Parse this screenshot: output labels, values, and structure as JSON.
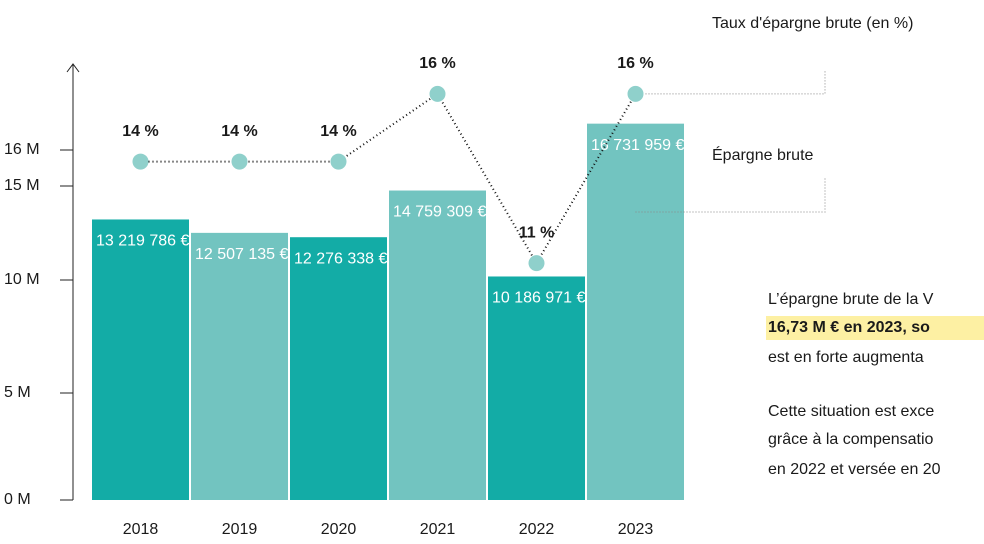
{
  "chart_data": {
    "type": "bar",
    "categories": [
      "2018",
      "2019",
      "2020",
      "2021",
      "2022",
      "2023"
    ],
    "series": [
      {
        "name": "Épargne brute",
        "colors": [
          "#13aca6",
          "#72c4c0",
          "#13aca6",
          "#72c4c0",
          "#13aca6",
          "#72c4c0"
        ],
        "values": [
          13219786,
          12507135,
          12276338,
          14759309,
          10186971,
          16731959
        ],
        "value_labels": [
          "13 219 786 €",
          "12 507 135 €",
          "12 276 338 €",
          "14 759 309 €",
          "10 186 971 €",
          "16 731 959 €"
        ]
      },
      {
        "name": "Taux d'épargne brute (en %)",
        "type": "line",
        "axis": "y2",
        "color": "#8fd0cb",
        "values": [
          14,
          14,
          14,
          16,
          11,
          16
        ],
        "value_labels": [
          "14 %",
          "14 %",
          "14 %",
          "16 %",
          "11 %",
          "16 %"
        ]
      }
    ],
    "ylim": [
      0,
      17000000
    ],
    "yticks": [
      {
        "value": 0,
        "label": "0 M"
      },
      {
        "value": 5000000,
        "label": "5 M"
      },
      {
        "value": 10000000,
        "label": "10 M"
      },
      {
        "value": 15000000,
        "label": "15 M"
      },
      {
        "value": 16000000,
        "label": "16 M"
      }
    ],
    "y2lim": [
      10,
      17
    ],
    "annotations": [
      "L’épargne brute de la V",
      "16,73 M € en 2023, so",
      "est en forte augmenta",
      "Cette situation est exce",
      "grâce à la compensatio",
      "en 2022 et versée en 20"
    ]
  }
}
